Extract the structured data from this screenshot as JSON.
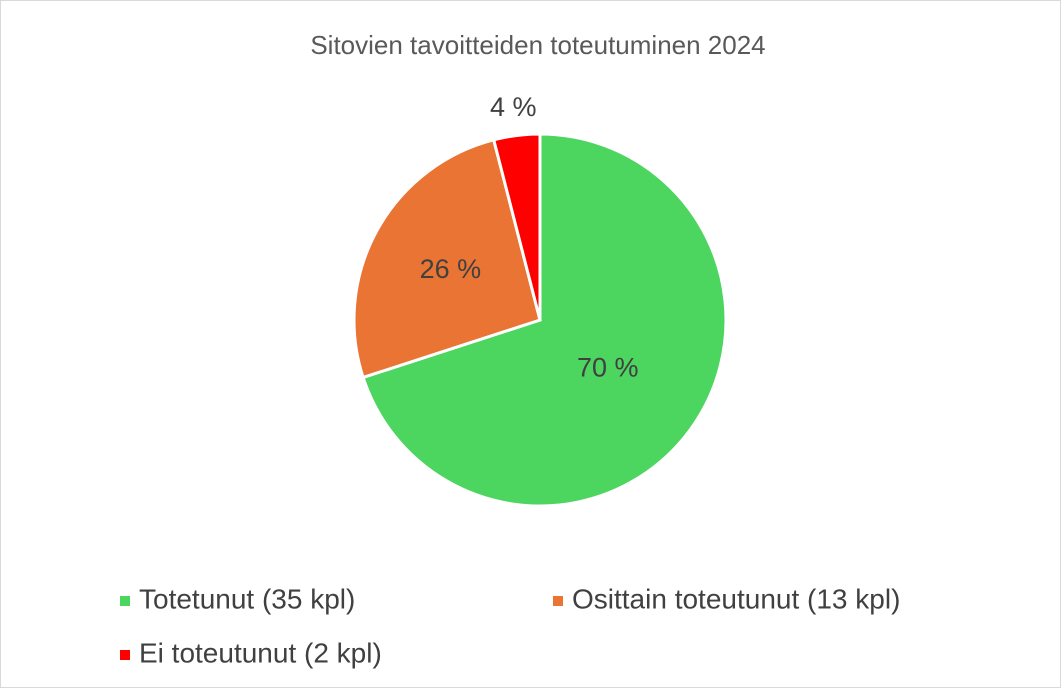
{
  "chart_data": {
    "type": "pie",
    "title": "Sitovien tavoitteiden toteutuminen 2024",
    "categories": [
      "Totetunut (35 kpl)",
      "Osittain toteutunut (13 kpl)",
      "Ei toteutunut (2 kpl)"
    ],
    "values": [
      70,
      26,
      4
    ],
    "value_labels": [
      "70 %",
      "26 %",
      "4 %"
    ],
    "colors": [
      "#4cd55f",
      "#ea7434",
      "#ff0000"
    ]
  }
}
